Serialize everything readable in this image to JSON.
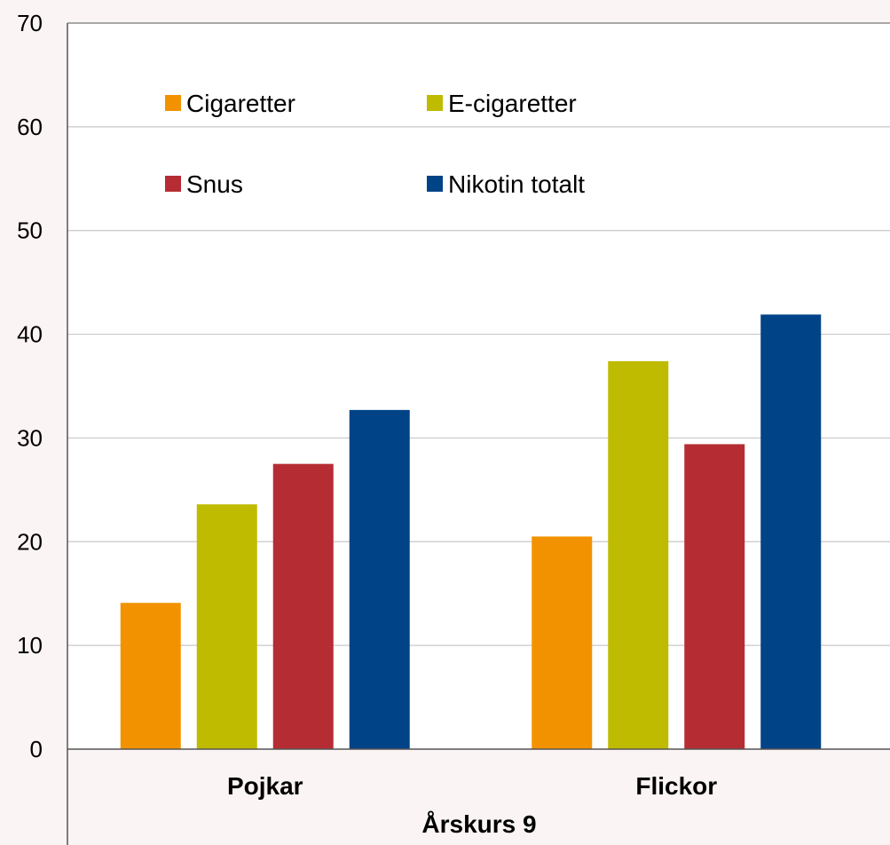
{
  "chart_data": {
    "type": "bar",
    "categories": [
      "Pojkar",
      "Flickor"
    ],
    "group_label": "Årskurs 9",
    "series": [
      {
        "name": "Cigaretter",
        "color": "#f39200",
        "values": [
          14.1,
          20.5
        ]
      },
      {
        "name": "E-cigaretter",
        "color": "#bfbb00",
        "values": [
          23.6,
          37.4
        ]
      },
      {
        "name": "Snus",
        "color": "#b62c33",
        "values": [
          27.5,
          29.4
        ]
      },
      {
        "name": "Nikotin totalt",
        "color": "#004387",
        "values": [
          32.7,
          41.9
        ]
      }
    ],
    "ylim": [
      0,
      70
    ],
    "yticks": [
      0,
      10,
      20,
      30,
      40,
      50,
      60,
      70
    ],
    "grid": true,
    "legend_position": "top-left inside"
  }
}
